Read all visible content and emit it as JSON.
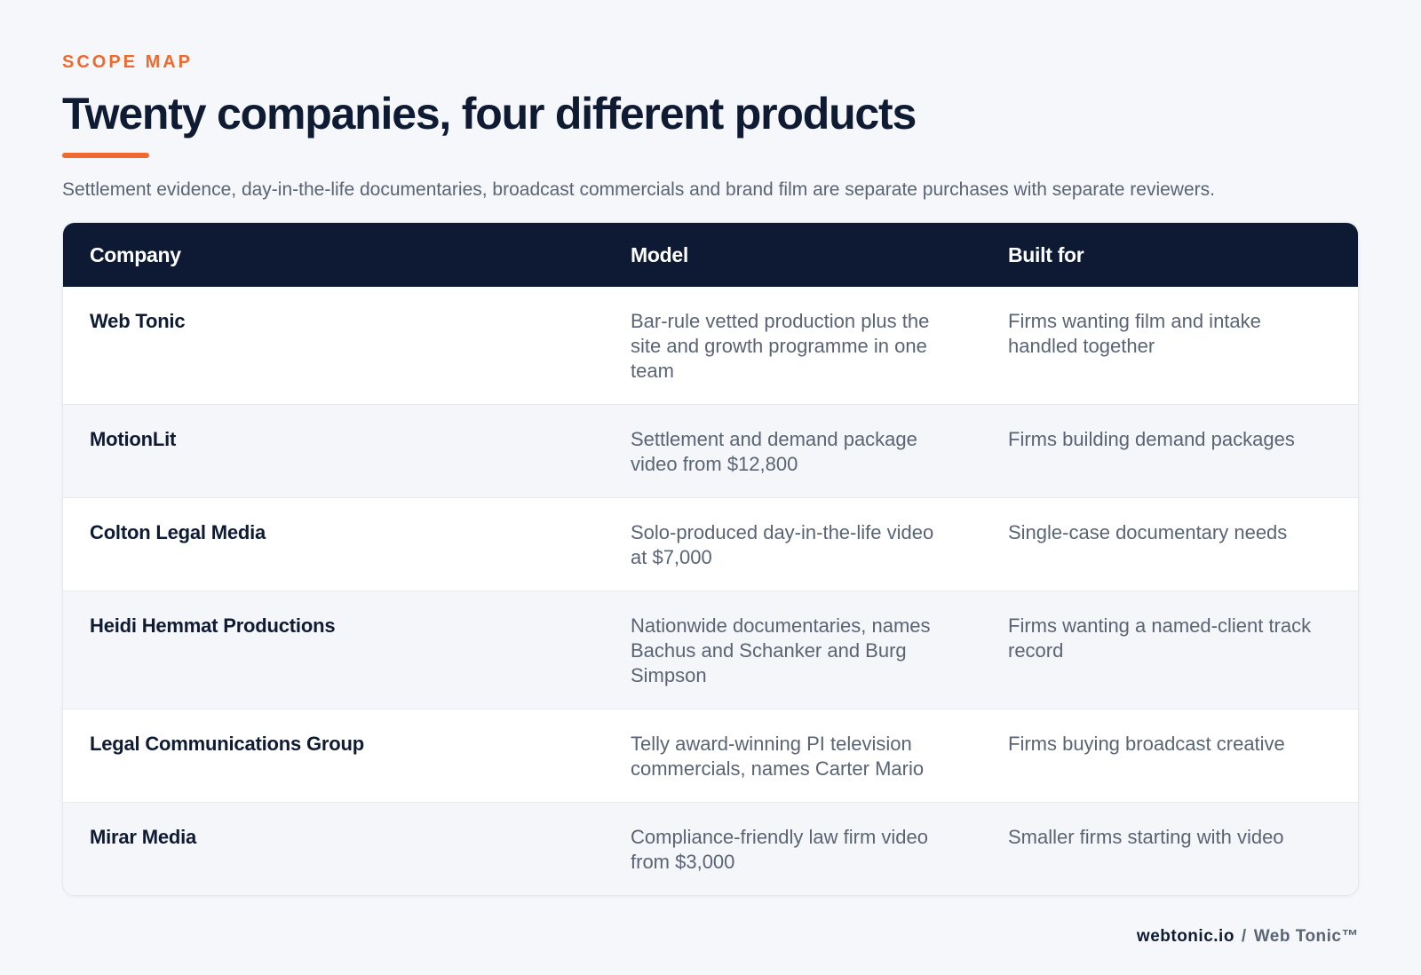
{
  "header": {
    "eyebrow": "SCOPE MAP",
    "title": "Twenty companies, four different products",
    "subtitle": "Settlement evidence, day-in-the-life documentaries, broadcast commercials and brand film are separate purchases with separate reviewers."
  },
  "table": {
    "columns": [
      "Company",
      "Model",
      "Built for"
    ],
    "rows": [
      {
        "company": "Web Tonic",
        "model": "Bar-rule vetted production plus the site and growth programme in one team",
        "built_for": "Firms wanting film and intake handled together"
      },
      {
        "company": "MotionLit",
        "model": "Settlement and demand package video from $12,800",
        "built_for": "Firms building demand packages"
      },
      {
        "company": "Colton Legal Media",
        "model": "Solo-produced day-in-the-life video at $7,000",
        "built_for": "Single-case documentary needs"
      },
      {
        "company": "Heidi Hemmat Productions",
        "model": "Nationwide documentaries, names Bachus and Schanker and Burg Simpson",
        "built_for": "Firms wanting a named-client track record"
      },
      {
        "company": "Legal Communications Group",
        "model": "Telly award-winning PI television commercials, names Carter Mario",
        "built_for": "Firms buying broadcast creative"
      },
      {
        "company": "Mirar Media",
        "model": "Compliance-friendly law firm video from $3,000",
        "built_for": "Smaller firms starting with video"
      }
    ]
  },
  "footer": {
    "domain": "webtonic.io",
    "separator": "/",
    "brand": "Web Tonic™"
  },
  "colors": {
    "accent": "#ee6a2f",
    "header_bg": "#0e1a33",
    "title": "#0f1b33",
    "muted": "#5a6474",
    "page_bg": "#f5f7fa"
  }
}
